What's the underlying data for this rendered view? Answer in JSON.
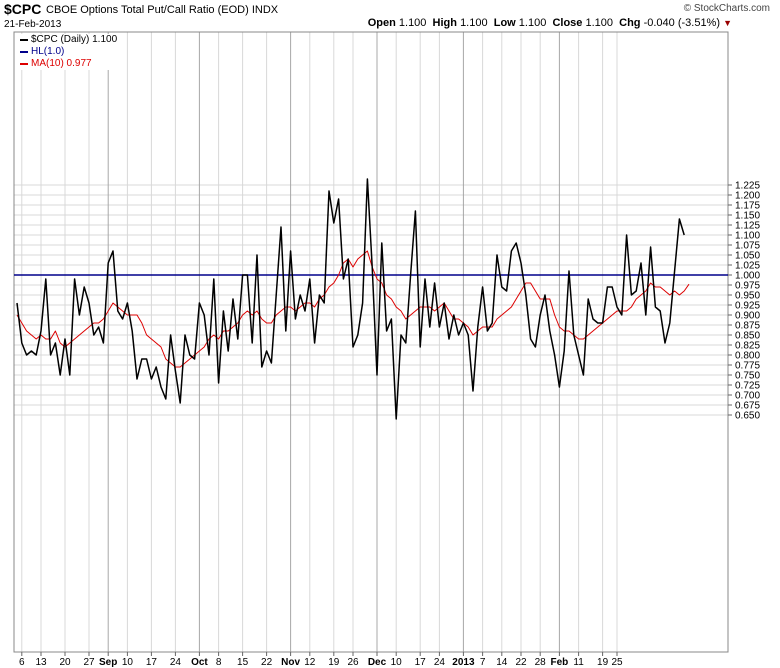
{
  "header": {
    "symbol": "$CPC",
    "description": "CBOE Options Total Put/Call Ratio (EOD)",
    "exchange": "INDX",
    "date": "21-Feb-2013",
    "brand": "© StockCharts.com",
    "open_label": "Open",
    "open": "1.100",
    "high_label": "High",
    "high": "1.100",
    "low_label": "Low",
    "low": "1.100",
    "close_label": "Close",
    "close": "1.100",
    "chg_label": "Chg",
    "chg": "-0.040 (-3.51%)"
  },
  "legend": {
    "cpc": "$CPC (Daily) 1.100",
    "hl": "HL(1.0)",
    "ma": "MA(10) 0.977"
  },
  "colors": {
    "price": "#000000",
    "hline": "#00008b",
    "ma": "#dd0000",
    "chg_arrow": "#990000"
  },
  "chart_data": {
    "type": "line",
    "ylim": [
      0.63,
      1.25
    ],
    "y_ticks": [
      "1.225",
      "1.200",
      "1.175",
      "1.150",
      "1.125",
      "1.100",
      "1.075",
      "1.050",
      "1.025",
      "1.000",
      "0.975",
      "0.950",
      "0.925",
      "0.900",
      "0.875",
      "0.850",
      "0.825",
      "0.800",
      "0.775",
      "0.750",
      "0.725",
      "0.700",
      "0.675",
      "0.650"
    ],
    "x_labels": [
      {
        "i": 1,
        "label": "6"
      },
      {
        "i": 5,
        "label": "13"
      },
      {
        "i": 10,
        "label": "20"
      },
      {
        "i": 15,
        "label": "27"
      },
      {
        "i": 19,
        "label": "Sep",
        "major": true
      },
      {
        "i": 23,
        "label": "10"
      },
      {
        "i": 28,
        "label": "17"
      },
      {
        "i": 33,
        "label": "24"
      },
      {
        "i": 38,
        "label": "Oct",
        "major": true
      },
      {
        "i": 42,
        "label": "8"
      },
      {
        "i": 47,
        "label": "15"
      },
      {
        "i": 52,
        "label": "22"
      },
      {
        "i": 57,
        "label": "Nov",
        "major": true
      },
      {
        "i": 61,
        "label": "12"
      },
      {
        "i": 66,
        "label": "19"
      },
      {
        "i": 70,
        "label": "26"
      },
      {
        "i": 75,
        "label": "Dec",
        "major": true
      },
      {
        "i": 79,
        "label": "10"
      },
      {
        "i": 84,
        "label": "17"
      },
      {
        "i": 88,
        "label": "24"
      },
      {
        "i": 93,
        "label": "2013",
        "major": true
      },
      {
        "i": 97,
        "label": "7"
      },
      {
        "i": 101,
        "label": "14"
      },
      {
        "i": 105,
        "label": "22"
      },
      {
        "i": 109,
        "label": "28"
      },
      {
        "i": 113,
        "label": "Feb",
        "major": true
      },
      {
        "i": 117,
        "label": "11"
      },
      {
        "i": 122,
        "label": "19"
      },
      {
        "i": 125,
        "label": "25"
      }
    ],
    "month_gridlines": [
      19,
      38,
      57,
      75,
      93,
      113
    ],
    "series": [
      {
        "name": "$CPC (Daily)",
        "values": [
          0.93,
          0.83,
          0.8,
          0.81,
          0.8,
          0.86,
          0.99,
          0.8,
          0.83,
          0.75,
          0.84,
          0.75,
          0.99,
          0.9,
          0.97,
          0.93,
          0.85,
          0.87,
          0.83,
          1.03,
          1.06,
          0.91,
          0.89,
          0.93,
          0.86,
          0.74,
          0.79,
          0.79,
          0.74,
          0.77,
          0.72,
          0.69,
          0.85,
          0.76,
          0.68,
          0.85,
          0.8,
          0.79,
          0.93,
          0.9,
          0.8,
          0.99,
          0.73,
          0.91,
          0.81,
          0.94,
          0.84,
          1.0,
          1.0,
          0.83,
          1.05,
          0.77,
          0.81,
          0.78,
          0.95,
          1.12,
          0.86,
          1.06,
          0.89,
          0.95,
          0.91,
          0.99,
          0.83,
          0.95,
          0.93,
          1.21,
          1.13,
          1.19,
          0.99,
          1.04,
          0.82,
          0.85,
          0.93,
          1.24,
          1.02,
          0.75,
          1.08,
          0.86,
          0.89,
          0.64,
          0.85,
          0.83,
          1.0,
          1.16,
          0.82,
          0.99,
          0.87,
          0.98,
          0.87,
          0.93,
          0.84,
          0.9,
          0.85,
          0.88,
          0.85,
          0.71,
          0.87,
          0.97,
          0.86,
          0.88,
          1.05,
          0.97,
          0.96,
          1.06,
          1.08,
          1.03,
          0.95,
          0.84,
          0.82,
          0.9,
          0.95,
          0.86,
          0.8,
          0.72,
          0.81,
          1.01,
          0.85,
          0.8,
          0.75,
          0.94,
          0.89,
          0.88,
          0.88,
          0.97,
          0.97,
          0.92,
          0.9,
          1.1,
          0.95,
          0.96,
          1.03,
          0.9,
          1.07,
          0.92,
          0.91,
          0.83,
          0.88,
          1.01,
          1.14,
          1.1
        ]
      },
      {
        "name": "HL(1.0)",
        "values": [
          1.0
        ]
      },
      {
        "name": "MA(10)",
        "values": [
          0.9,
          0.88,
          0.86,
          0.85,
          0.84,
          0.85,
          0.84,
          0.84,
          0.86,
          0.83,
          0.82,
          0.83,
          0.84,
          0.85,
          0.86,
          0.87,
          0.88,
          0.88,
          0.89,
          0.91,
          0.93,
          0.92,
          0.91,
          0.9,
          0.9,
          0.9,
          0.88,
          0.85,
          0.84,
          0.83,
          0.82,
          0.79,
          0.78,
          0.77,
          0.77,
          0.78,
          0.79,
          0.8,
          0.81,
          0.82,
          0.84,
          0.85,
          0.84,
          0.86,
          0.86,
          0.87,
          0.88,
          0.9,
          0.91,
          0.9,
          0.91,
          0.89,
          0.88,
          0.88,
          0.9,
          0.91,
          0.92,
          0.92,
          0.91,
          0.92,
          0.93,
          0.93,
          0.92,
          0.94,
          0.95,
          0.97,
          0.98,
          1.0,
          1.03,
          1.04,
          1.02,
          1.04,
          1.05,
          1.06,
          1.02,
          0.99,
          0.98,
          0.95,
          0.94,
          0.92,
          0.91,
          0.89,
          0.9,
          0.91,
          0.92,
          0.92,
          0.92,
          0.91,
          0.92,
          0.93,
          0.91,
          0.89,
          0.89,
          0.88,
          0.87,
          0.85,
          0.86,
          0.87,
          0.87,
          0.87,
          0.89,
          0.9,
          0.91,
          0.92,
          0.94,
          0.96,
          0.98,
          0.98,
          0.96,
          0.94,
          0.94,
          0.94,
          0.9,
          0.87,
          0.86,
          0.86,
          0.85,
          0.84,
          0.84,
          0.85,
          0.86,
          0.87,
          0.88,
          0.89,
          0.9,
          0.91,
          0.91,
          0.91,
          0.92,
          0.94,
          0.95,
          0.96,
          0.98,
          0.97,
          0.97,
          0.96,
          0.95,
          0.96,
          0.95,
          0.96,
          0.977
        ]
      }
    ]
  }
}
